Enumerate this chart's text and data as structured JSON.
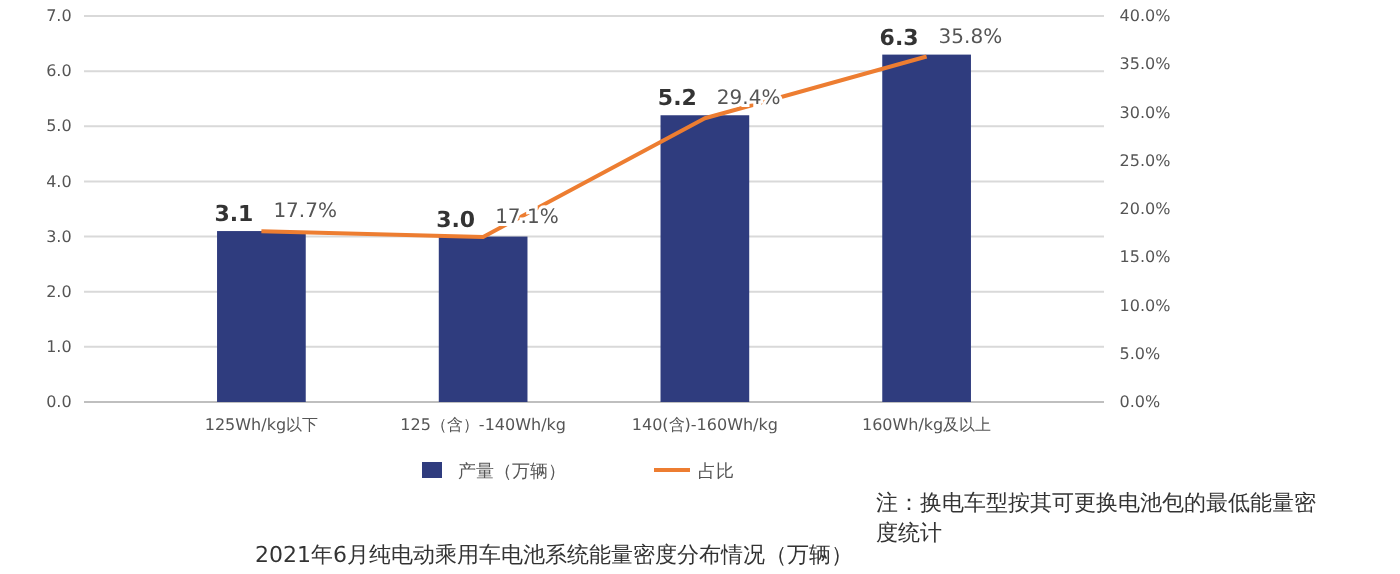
{
  "chart_data": {
    "type": "bar",
    "title": "2021年6月纯电动乘用车电池系统能量密度分布情况（万辆）",
    "categories": [
      "125Wh/kg以下",
      "125（含）-140Wh/kg",
      "140(含)-160Wh/kg",
      "160Wh/kg及以上"
    ],
    "series": [
      {
        "name": "产量（万辆）",
        "color": "#2f3c7e",
        "values": [
          3.1,
          3.0,
          5.2,
          6.3
        ],
        "value_labels": [
          "3.1",
          "3.0",
          "5.2",
          "6.3"
        ]
      },
      {
        "name": "占比",
        "type": "line",
        "axis": "y2",
        "color": "#ed7d31",
        "values": [
          17.7,
          17.1,
          29.4,
          35.8
        ],
        "value_labels": [
          "17.7%",
          "17.1%",
          "29.4%",
          "35.8%"
        ]
      }
    ],
    "ylim": [
      0,
      7
    ],
    "yticks": [
      {
        "value": 0,
        "label": "0.0"
      },
      {
        "value": 1,
        "label": "1.0"
      },
      {
        "value": 2,
        "label": "2.0"
      },
      {
        "value": 3,
        "label": "3.0"
      },
      {
        "value": 4,
        "label": "4.0"
      },
      {
        "value": 5,
        "label": "5.0"
      },
      {
        "value": 6,
        "label": "6.0"
      },
      {
        "value": 7,
        "label": "7.0"
      }
    ],
    "y2lim": [
      0,
      40
    ],
    "y2ticks": [
      {
        "value": 0,
        "label": "0.0%"
      },
      {
        "value": 5,
        "label": "5.0%"
      },
      {
        "value": 10,
        "label": "10.0%"
      },
      {
        "value": 15,
        "label": "15.0%"
      },
      {
        "value": 20,
        "label": "20.0%"
      },
      {
        "value": 25,
        "label": "25.0%"
      },
      {
        "value": 30,
        "label": "30.0%"
      },
      {
        "value": 35,
        "label": "35.0%"
      },
      {
        "value": 40,
        "label": "40.0%"
      }
    ],
    "grid": "y",
    "legend": "bottom",
    "marker": "none",
    "annotations": [
      "注：换电车型按其可更换电池包的最低能量密度统计"
    ]
  }
}
